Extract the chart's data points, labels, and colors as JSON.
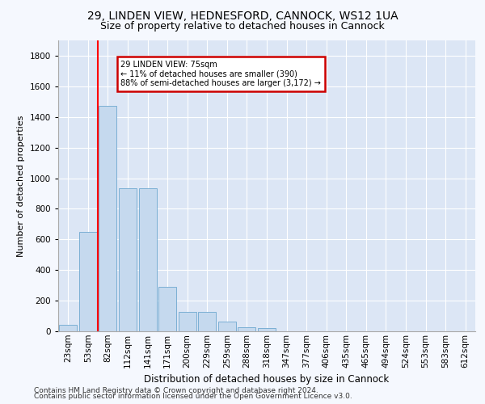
{
  "title1": "29, LINDEN VIEW, HEDNESFORD, CANNOCK, WS12 1UA",
  "title2": "Size of property relative to detached houses in Cannock",
  "xlabel": "Distribution of detached houses by size in Cannock",
  "ylabel": "Number of detached properties",
  "footer1": "Contains HM Land Registry data © Crown copyright and database right 2024.",
  "footer2": "Contains public sector information licensed under the Open Government Licence v3.0.",
  "bin_labels": [
    "23sqm",
    "53sqm",
    "82sqm",
    "112sqm",
    "141sqm",
    "171sqm",
    "200sqm",
    "229sqm",
    "259sqm",
    "288sqm",
    "318sqm",
    "347sqm",
    "377sqm",
    "406sqm",
    "435sqm",
    "465sqm",
    "494sqm",
    "524sqm",
    "553sqm",
    "583sqm",
    "612sqm"
  ],
  "bar_heights": [
    40,
    650,
    1470,
    935,
    935,
    290,
    125,
    125,
    62,
    25,
    20,
    0,
    0,
    0,
    0,
    0,
    0,
    0,
    0,
    0,
    0
  ],
  "bar_color": "#c5d9ee",
  "bar_edge_color": "#7bafd4",
  "red_line_label1": "29 LINDEN VIEW: 75sqm",
  "red_line_label2": "← 11% of detached houses are smaller (390)",
  "red_line_label3": "88% of semi-detached houses are larger (3,172) →",
  "annotation_box_color": "#ffffff",
  "annotation_box_edge_color": "#cc0000",
  "ylim": [
    0,
    1900
  ],
  "yticks": [
    0,
    200,
    400,
    600,
    800,
    1000,
    1200,
    1400,
    1600,
    1800
  ],
  "bg_color": "#dce6f5",
  "fig_bg_color": "#f5f8fe",
  "title1_fontsize": 10,
  "title2_fontsize": 9,
  "xlabel_fontsize": 8.5,
  "ylabel_fontsize": 8,
  "tick_fontsize": 7.5,
  "footer_fontsize": 6.5
}
